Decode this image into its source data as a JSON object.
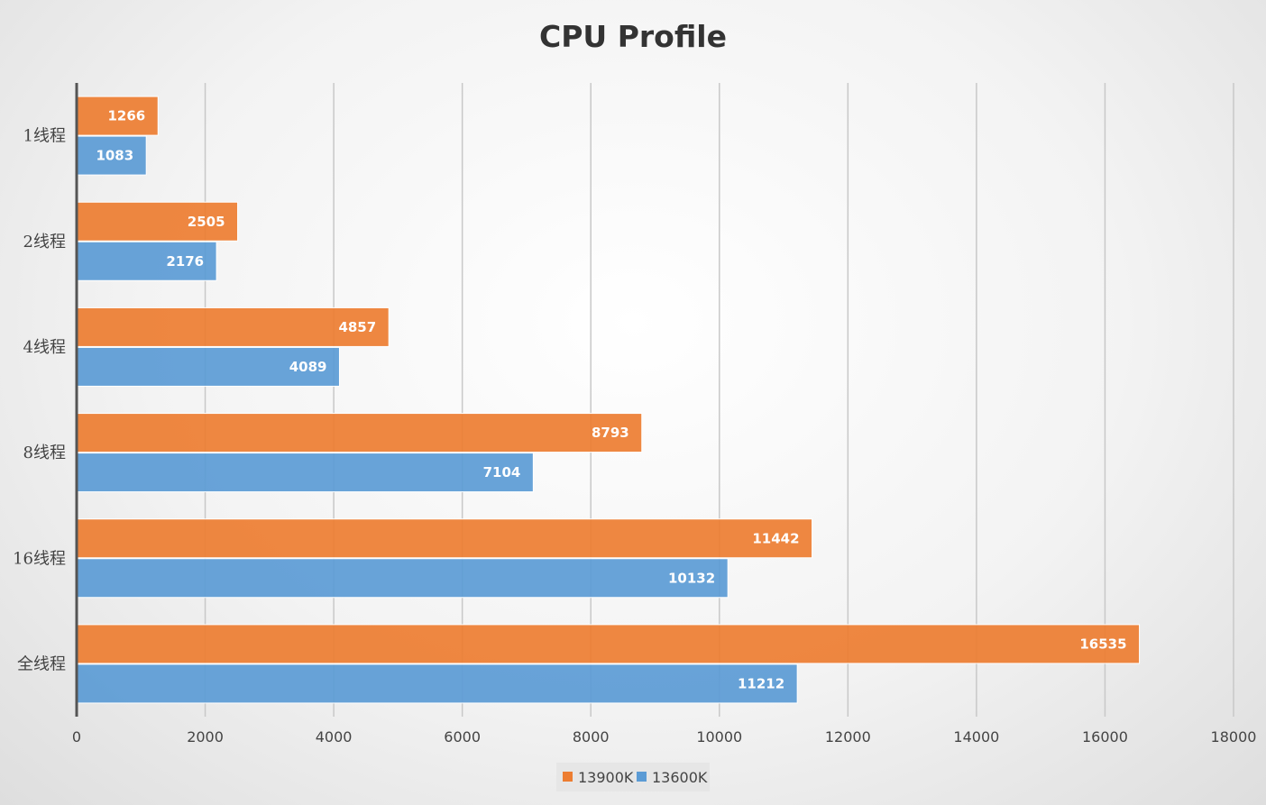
{
  "chart_data": {
    "type": "bar",
    "orientation": "horizontal",
    "title": "CPU Profile",
    "categories": [
      "1线程",
      "2线程",
      "4线程",
      "8线程",
      "16线程",
      "全线程"
    ],
    "series": [
      {
        "name": "13900K",
        "color": "#ED7D31",
        "values": [
          1266,
          2505,
          4857,
          8793,
          11442,
          16535
        ]
      },
      {
        "name": "13600K",
        "color": "#5B9BD5",
        "values": [
          1083,
          2176,
          4089,
          7104,
          10132,
          11212
        ]
      }
    ],
    "xlim": [
      0,
      18000
    ],
    "xticks": [
      "0",
      "2000",
      "4000",
      "6000",
      "8000",
      "10000",
      "12000",
      "14000",
      "16000",
      "18000"
    ],
    "xlabel": "",
    "ylabel": "",
    "grid": true,
    "legend_position": "bottom"
  }
}
